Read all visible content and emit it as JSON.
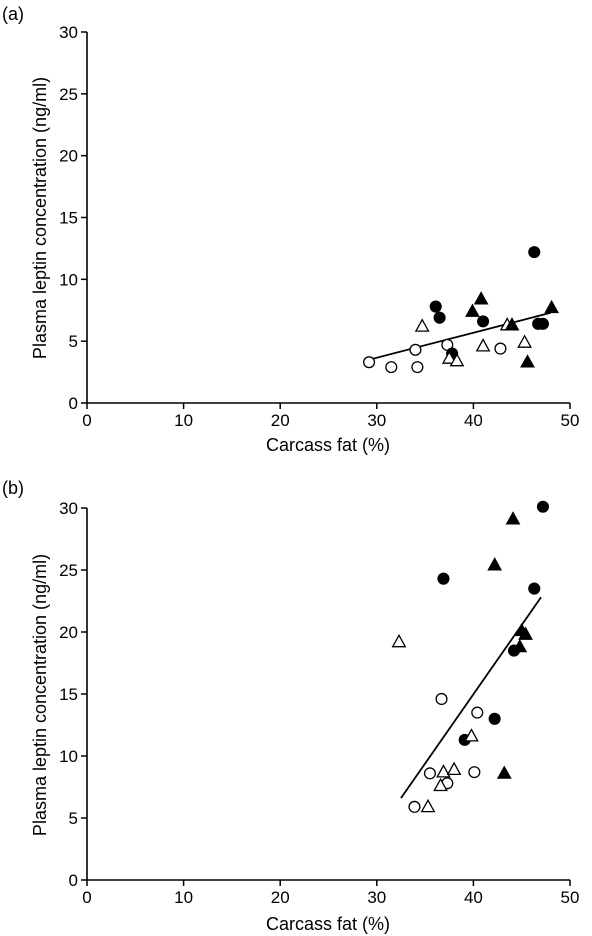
{
  "figure": {
    "panels": [
      {
        "panel_label": "(a)",
        "xlabel": "Carcass fat (%)",
        "ylabel": "Plasma leptin concentration (ng/ml)"
      },
      {
        "panel_label": "(b)",
        "xlabel": "Carcass fat (%)",
        "ylabel": "Plasma leptin concentration (ng/ml)"
      }
    ]
  },
  "chart_data": [
    {
      "type": "scatter",
      "title": "",
      "panel_label": "(a)",
      "xlabel": "Carcass fat (%)",
      "ylabel": "Plasma leptin concentration (ng/ml)",
      "xlim": [
        0,
        50
      ],
      "ylim": [
        0,
        30
      ],
      "xticks": [
        0,
        10,
        20,
        30,
        40,
        50
      ],
      "yticks": [
        0,
        5,
        10,
        15,
        20,
        25,
        30
      ],
      "grid": false,
      "legend": "none",
      "series": [
        {
          "marker": "circle-open",
          "points": [
            [
              29.2,
              3.3
            ],
            [
              31.5,
              2.9
            ],
            [
              34.0,
              4.3
            ],
            [
              34.2,
              2.9
            ],
            [
              37.3,
              4.7
            ],
            [
              42.8,
              4.4
            ]
          ]
        },
        {
          "marker": "circle-filled",
          "points": [
            [
              36.1,
              7.8
            ],
            [
              36.5,
              6.9
            ],
            [
              37.8,
              4.0
            ],
            [
              41.0,
              6.6
            ],
            [
              46.3,
              12.2
            ],
            [
              46.7,
              6.4
            ],
            [
              47.2,
              6.4
            ]
          ]
        },
        {
          "marker": "triangle-open",
          "points": [
            [
              34.7,
              6.2
            ],
            [
              37.5,
              3.6
            ],
            [
              38.3,
              3.4
            ],
            [
              41.0,
              4.6
            ],
            [
              43.5,
              6.3
            ],
            [
              45.3,
              4.9
            ]
          ]
        },
        {
          "marker": "triangle-filled",
          "points": [
            [
              39.9,
              7.4
            ],
            [
              40.8,
              8.4
            ],
            [
              44.0,
              6.3
            ],
            [
              45.6,
              3.3
            ],
            [
              48.1,
              7.7
            ]
          ]
        }
      ],
      "trendline": {
        "from": [
          29.2,
          3.5
        ],
        "to": [
          48.0,
          7.3
        ]
      }
    },
    {
      "type": "scatter",
      "title": "",
      "panel_label": "(b)",
      "xlabel": "Carcass fat (%)",
      "ylabel": "Plasma leptin concentration (ng/ml)",
      "xlim": [
        0,
        50
      ],
      "ylim": [
        0,
        30
      ],
      "xticks": [
        0,
        10,
        20,
        30,
        40,
        50
      ],
      "yticks": [
        0,
        5,
        10,
        15,
        20,
        25,
        30
      ],
      "grid": false,
      "legend": "none",
      "series": [
        {
          "marker": "circle-open",
          "points": [
            [
              33.9,
              5.9
            ],
            [
              35.5,
              8.6
            ],
            [
              36.7,
              14.6
            ],
            [
              37.3,
              7.8
            ],
            [
              40.1,
              8.7
            ],
            [
              40.4,
              13.5
            ]
          ]
        },
        {
          "marker": "circle-filled",
          "points": [
            [
              36.9,
              24.3
            ],
            [
              39.1,
              11.3
            ],
            [
              42.2,
              13.0
            ],
            [
              44.2,
              18.5
            ],
            [
              46.3,
              23.5
            ],
            [
              47.2,
              30.1
            ]
          ]
        },
        {
          "marker": "triangle-open",
          "points": [
            [
              32.3,
              19.2
            ],
            [
              35.3,
              5.9
            ],
            [
              36.6,
              7.6
            ],
            [
              36.9,
              8.7
            ],
            [
              38.0,
              8.9
            ],
            [
              39.8,
              11.6
            ]
          ]
        },
        {
          "marker": "triangle-filled",
          "points": [
            [
              42.2,
              25.4
            ],
            [
              43.2,
              8.6
            ],
            [
              44.1,
              29.1
            ],
            [
              44.8,
              18.8
            ],
            [
              45.0,
              20.1
            ],
            [
              45.4,
              19.8
            ]
          ]
        }
      ],
      "trendline": {
        "from": [
          32.5,
          6.6
        ],
        "to": [
          47.0,
          22.8
        ]
      }
    }
  ]
}
